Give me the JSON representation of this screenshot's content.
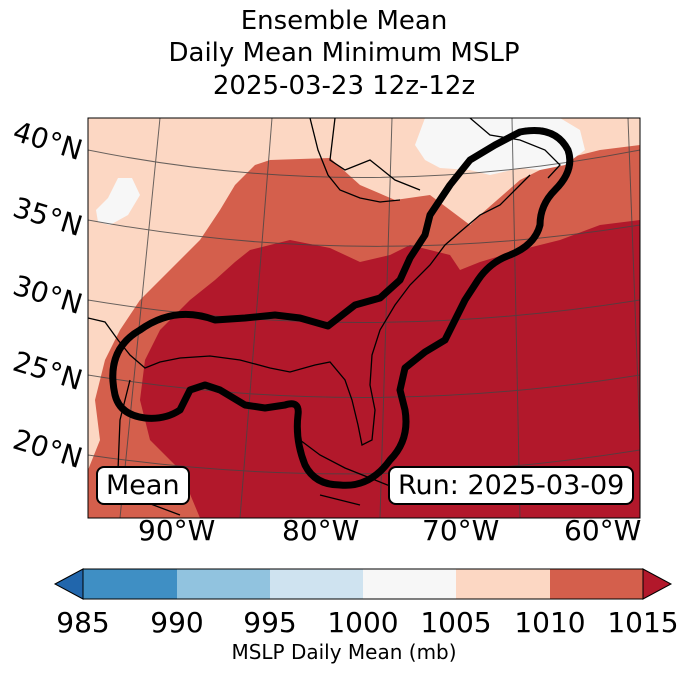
{
  "title": {
    "line1": "Ensemble Mean",
    "line2": "Daily Mean Minimum MSLP",
    "line3": "2025-03-23 12z-12z"
  },
  "map": {
    "lat_labels": [
      "40°N",
      "35°N",
      "30°N",
      "25°N",
      "20°N"
    ],
    "lon_labels": [
      "90°W",
      "80°W",
      "70°W",
      "60°W"
    ],
    "mean_label": "Mean",
    "run_label": "Run: 2025-03-09",
    "region": "Gulf of Mexico / US East Coast / Western Atlantic"
  },
  "colorbar": {
    "ticks": [
      "985",
      "990",
      "995",
      "1000",
      "1005",
      "1010",
      "1015"
    ],
    "label": "MSLP Daily Mean (mb)",
    "colors": [
      "#2166ac",
      "#3f8fc4",
      "#91c3df",
      "#cfe3f0",
      "#f7f7f7",
      "#fcd7c3",
      "#d45f4c",
      "#b2182b"
    ]
  }
}
